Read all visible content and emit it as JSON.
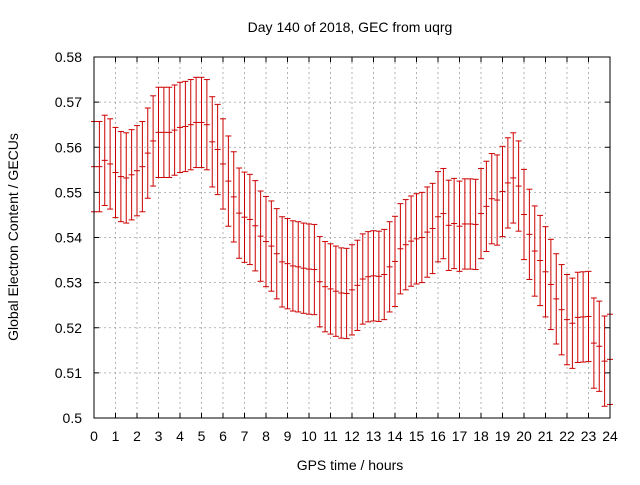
{
  "chart_data": {
    "type": "line",
    "title": "Day 140 of 2018, GEC from uqrg",
    "xlabel": "GPS time / hours",
    "ylabel": "Global Electron Content / GECUs",
    "xlim": [
      0,
      24
    ],
    "ylim": [
      0.5,
      0.58
    ],
    "x_ticks": [
      0,
      1,
      2,
      3,
      4,
      5,
      6,
      7,
      8,
      9,
      10,
      11,
      12,
      13,
      14,
      15,
      16,
      17,
      18,
      19,
      20,
      21,
      22,
      23,
      24
    ],
    "y_ticks": [
      0.5,
      0.51,
      0.52,
      0.53,
      0.54,
      0.55,
      0.56,
      0.57,
      0.58
    ],
    "y_tick_labels": [
      "0.5",
      "0.51",
      "0.52",
      "0.53",
      "0.54",
      "0.55",
      "0.56",
      "0.57",
      "0.58"
    ],
    "grid": true,
    "error_bar_halfwidth": 0.01,
    "series": [
      {
        "name": "",
        "color": "#cc0000",
        "x": [
          0.0,
          0.25,
          0.5,
          0.75,
          1.0,
          1.25,
          1.5,
          1.75,
          2.0,
          2.25,
          2.5,
          2.75,
          3.0,
          3.25,
          3.5,
          3.75,
          4.0,
          4.25,
          4.5,
          4.75,
          5.0,
          5.25,
          5.5,
          5.75,
          6.0,
          6.25,
          6.5,
          6.75,
          7.0,
          7.25,
          7.5,
          7.75,
          8.0,
          8.25,
          8.5,
          8.75,
          9.0,
          9.25,
          9.5,
          9.75,
          10.0,
          10.25,
          10.5,
          10.75,
          11.0,
          11.25,
          11.5,
          11.75,
          12.0,
          12.25,
          12.5,
          12.75,
          13.0,
          13.25,
          13.5,
          13.75,
          14.0,
          14.25,
          14.5,
          14.75,
          15.0,
          15.25,
          15.5,
          15.75,
          16.0,
          16.25,
          16.5,
          16.75,
          17.0,
          17.25,
          17.5,
          17.75,
          18.0,
          18.25,
          18.5,
          18.75,
          19.0,
          19.25,
          19.5,
          19.75,
          20.0,
          20.25,
          20.5,
          20.75,
          21.0,
          21.25,
          21.5,
          21.75,
          22.0,
          22.25,
          22.5,
          22.75,
          23.0,
          23.25,
          23.5,
          23.75,
          24.0
        ],
        "y": [
          0.5557,
          0.5557,
          0.5571,
          0.5563,
          0.5544,
          0.5535,
          0.5532,
          0.5539,
          0.5548,
          0.5557,
          0.5587,
          0.5614,
          0.5633,
          0.5633,
          0.5633,
          0.5638,
          0.5644,
          0.5646,
          0.565,
          0.5655,
          0.5655,
          0.565,
          0.5612,
          0.5595,
          0.5563,
          0.5525,
          0.549,
          0.5454,
          0.5445,
          0.544,
          0.5426,
          0.5403,
          0.5391,
          0.5381,
          0.5364,
          0.5346,
          0.5342,
          0.5337,
          0.5335,
          0.5332,
          0.533,
          0.5329,
          0.5302,
          0.5291,
          0.5286,
          0.5281,
          0.5277,
          0.5276,
          0.5284,
          0.5294,
          0.5308,
          0.5313,
          0.5315,
          0.5314,
          0.5318,
          0.5335,
          0.5347,
          0.5375,
          0.5384,
          0.5392,
          0.5397,
          0.54,
          0.5412,
          0.542,
          0.5446,
          0.5453,
          0.5427,
          0.5431,
          0.5425,
          0.543,
          0.543,
          0.5429,
          0.5453,
          0.5469,
          0.5486,
          0.5483,
          0.5502,
          0.5521,
          0.5532,
          0.5514,
          0.5451,
          0.5407,
          0.537,
          0.5349,
          0.5324,
          0.5296,
          0.5264,
          0.524,
          0.5218,
          0.521,
          0.5223,
          0.5224,
          0.5225,
          0.5166,
          0.5159,
          0.5126,
          0.513
        ]
      }
    ]
  }
}
